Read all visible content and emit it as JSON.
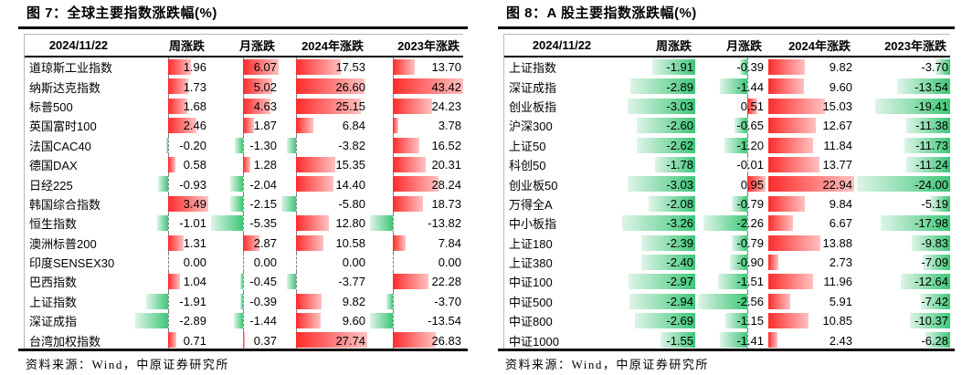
{
  "colors": {
    "positive": "#ff2b2b",
    "positive_light": "#ffc2c2",
    "negative": "#3fc778",
    "negative_light": "#def4e8",
    "rule": "#000000"
  },
  "chart_data": [
    {
      "type": "table",
      "title": "图 7：全球主要指数涨跌幅(%)",
      "source": "资料来源：Wind，中原证券研究所",
      "date_header": "2024/11/22",
      "columns": [
        "周涨跌",
        "月涨跌",
        "2024年涨跌",
        "2023年涨跌"
      ],
      "bar_style": "databar: red=positive (anchored at axis, fades right), green=negative (anchored at axis, fades left), dashed axis line per column",
      "rows": [
        {
          "name": "道琼斯工业指数",
          "values": [
            1.96,
            6.07,
            17.53,
            13.7
          ]
        },
        {
          "name": "纳斯达克指数",
          "values": [
            1.73,
            5.02,
            26.6,
            43.42
          ]
        },
        {
          "name": "标普500",
          "values": [
            1.68,
            4.63,
            25.15,
            24.23
          ]
        },
        {
          "name": "英国富时100",
          "values": [
            2.46,
            1.87,
            6.84,
            3.78
          ]
        },
        {
          "name": "法国CAC40",
          "values": [
            -0.2,
            -1.3,
            -3.82,
            16.52
          ]
        },
        {
          "name": "德国DAX",
          "values": [
            0.58,
            1.28,
            15.35,
            20.31
          ]
        },
        {
          "name": "日经225",
          "values": [
            -0.93,
            -2.04,
            14.4,
            28.24
          ]
        },
        {
          "name": "韩国综合指数",
          "values": [
            3.49,
            -2.15,
            -5.8,
            18.73
          ]
        },
        {
          "name": "恒生指数",
          "values": [
            -1.01,
            -5.35,
            12.8,
            -13.82
          ]
        },
        {
          "name": "澳洲标普200",
          "values": [
            1.31,
            2.87,
            10.58,
            7.84
          ]
        },
        {
          "name": "印度SENSEX30",
          "values": [
            0.0,
            0.0,
            0.0,
            0.0
          ]
        },
        {
          "name": "巴西指数",
          "values": [
            1.04,
            -0.45,
            -3.77,
            22.28
          ]
        },
        {
          "name": "上证指数",
          "values": [
            -1.91,
            -0.39,
            9.82,
            -3.7
          ]
        },
        {
          "name": "深证成指",
          "values": [
            -2.89,
            -1.44,
            9.6,
            -13.54
          ]
        },
        {
          "name": "台湾加权指数",
          "values": [
            0.71,
            0.37,
            27.74,
            26.83
          ]
        }
      ]
    },
    {
      "type": "table",
      "title": "图 8：A 股主要指数涨跌幅(%)",
      "source": "资料来源：Wind，中原证券研究所",
      "date_header": "2024/11/22",
      "columns": [
        "周涨跌",
        "月涨跌",
        "2024年涨跌",
        "2023年涨跌"
      ],
      "bar_style": "databar: red=positive (anchored at axis, fades right), green=negative (anchored at axis, fades left), dashed axis line per column",
      "rows": [
        {
          "name": "上证指数",
          "values": [
            -1.91,
            -0.39,
            9.82,
            -3.7
          ]
        },
        {
          "name": "深证成指",
          "values": [
            -2.89,
            -1.44,
            9.6,
            -13.54
          ]
        },
        {
          "name": "创业板指",
          "values": [
            -3.03,
            0.51,
            15.03,
            -19.41
          ]
        },
        {
          "name": "沪深300",
          "values": [
            -2.6,
            -0.65,
            12.67,
            -11.38
          ]
        },
        {
          "name": "上证50",
          "values": [
            -2.62,
            -1.2,
            11.84,
            -11.73
          ]
        },
        {
          "name": "科创50",
          "values": [
            -1.78,
            -0.01,
            13.77,
            -11.24
          ]
        },
        {
          "name": "创业板50",
          "values": [
            -3.03,
            0.95,
            22.94,
            -24.0
          ]
        },
        {
          "name": "万得全A",
          "values": [
            -2.08,
            -0.79,
            9.84,
            -5.19
          ]
        },
        {
          "name": "中小板指",
          "values": [
            -3.26,
            -2.26,
            6.67,
            -17.98
          ]
        },
        {
          "name": "上证180",
          "values": [
            -2.39,
            -0.79,
            13.88,
            -9.83
          ]
        },
        {
          "name": "上证380",
          "values": [
            -2.4,
            -0.9,
            2.73,
            -7.09
          ]
        },
        {
          "name": "中证100",
          "values": [
            -2.97,
            -1.51,
            11.96,
            -12.64
          ]
        },
        {
          "name": "中证500",
          "values": [
            -2.94,
            -2.56,
            5.91,
            -7.42
          ]
        },
        {
          "name": "中证800",
          "values": [
            -2.69,
            -1.15,
            10.85,
            -10.37
          ]
        },
        {
          "name": "中证1000",
          "values": [
            -1.55,
            -1.41,
            2.43,
            -6.28
          ]
        }
      ]
    }
  ]
}
